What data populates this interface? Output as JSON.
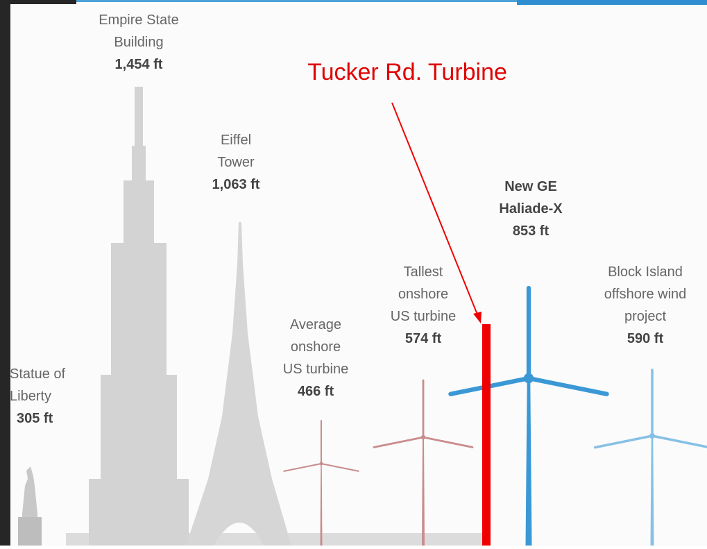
{
  "annotation": {
    "label": "Tucker Rd. Turbine"
  },
  "structures": [
    {
      "lines": [
        "Statue of",
        "Liberty"
      ],
      "height": "305 ft"
    },
    {
      "lines": [
        "Empire State",
        "Building"
      ],
      "height": "1,454 ft"
    },
    {
      "lines": [
        "Eiffel",
        "Tower"
      ],
      "height": "1,063 ft"
    },
    {
      "lines": [
        "Average",
        "onshore",
        "US turbine"
      ],
      "height": "466 ft"
    },
    {
      "lines": [
        "Tallest",
        "onshore",
        "US turbine"
      ],
      "height": "574 ft"
    },
    {
      "lines": [
        "New GE",
        "Haliade-X"
      ],
      "height": "853 ft"
    },
    {
      "lines": [
        "Block Island",
        "offshore wind",
        "project"
      ],
      "height": "590 ft"
    }
  ]
}
